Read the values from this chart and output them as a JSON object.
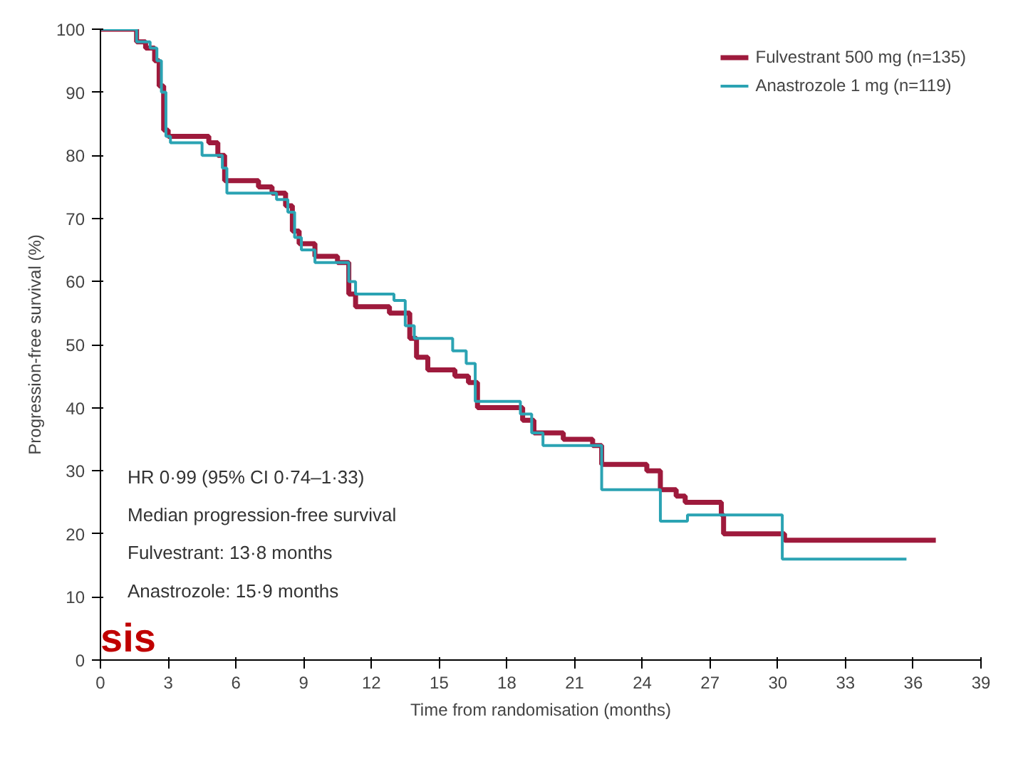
{
  "chart_data": {
    "type": "step",
    "xlabel": "Time from randomisation (months)",
    "ylabel": "Progression-free survival (%)",
    "xlim": [
      0,
      39
    ],
    "xticks": [
      0,
      3,
      6,
      9,
      12,
      15,
      18,
      21,
      24,
      27,
      30,
      33,
      36,
      39
    ],
    "ylim": [
      0,
      100
    ],
    "yticks": [
      0,
      10,
      20,
      30,
      40,
      50,
      60,
      70,
      80,
      90,
      100
    ],
    "grid": false,
    "legend": "top right",
    "series": [
      {
        "name": "Fulvestrant 500 mg (n=135)",
        "color": "#9e1a3c",
        "x": [
          0,
          1.6,
          2.0,
          2.4,
          2.6,
          2.8,
          3.0,
          4.8,
          5.2,
          5.5,
          7.0,
          7.6,
          8.2,
          8.5,
          8.8,
          9.5,
          10.5,
          11.0,
          11.3,
          12.8,
          13.7,
          14.0,
          14.5,
          15.7,
          16.3,
          16.7,
          18.7,
          19.2,
          20.5,
          21.8,
          22.2,
          24.2,
          24.8,
          25.5,
          25.9,
          27.5,
          27.6,
          30.3,
          37
        ],
        "values": [
          100,
          98,
          97,
          95,
          91,
          84,
          83,
          82,
          80,
          76,
          75,
          74,
          72,
          68,
          66,
          64,
          63,
          58,
          56,
          55,
          51,
          48,
          46,
          45,
          44,
          40,
          38,
          36,
          35,
          34,
          31,
          30,
          27,
          26,
          25,
          23,
          20,
          19,
          19
        ]
      },
      {
        "name": "Anastrozole 1 mg (n=119)",
        "color": "#2ba3b3",
        "x": [
          0,
          1.6,
          2.2,
          2.5,
          2.7,
          2.9,
          3.1,
          4.5,
          5.4,
          5.6,
          7.8,
          8.3,
          8.6,
          8.9,
          9.5,
          11.0,
          11.3,
          13.0,
          13.5,
          13.9,
          15.6,
          16.2,
          16.6,
          18.6,
          19.1,
          19.6,
          22.2,
          24.8,
          26.0,
          30.2,
          35.7
        ],
        "values": [
          100,
          98,
          97,
          95,
          90,
          83,
          82,
          80,
          78,
          74,
          73,
          71,
          67,
          65,
          63,
          60,
          58,
          57,
          53,
          51,
          49,
          47,
          41,
          39,
          36,
          34,
          27,
          22,
          23,
          16,
          16
        ]
      }
    ],
    "annotations": [
      "HR 0·99 (95% CI 0·74–1·33)",
      "Median progression-free survival",
      "Fulvestrant: 13·8 months",
      "Anastrozole: 15·9 months",
      "sis"
    ]
  }
}
